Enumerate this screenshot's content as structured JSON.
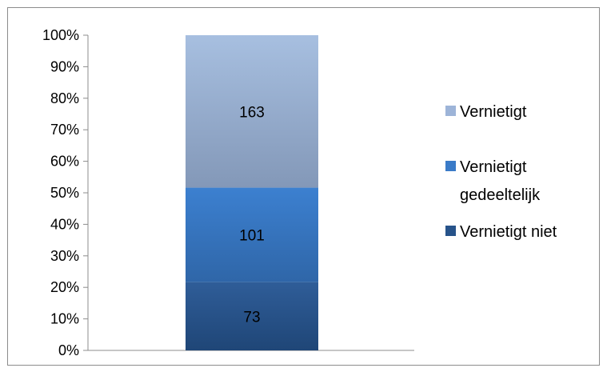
{
  "chart_data": {
    "type": "bar",
    "stacked": "percent",
    "categories": [
      ""
    ],
    "series": [
      {
        "name": "Vernietigt niet",
        "values": [
          73
        ],
        "color_top": "#2f5d98",
        "color_bottom": "#1f4677"
      },
      {
        "name": "Vernietigt gedeeltelijk",
        "values": [
          101
        ],
        "color_top": "#3c80d0",
        "color_bottom": "#2f66a8"
      },
      {
        "name": "Vernietigt",
        "values": [
          163
        ],
        "color_top": "#a7bfe0",
        "color_bottom": "#8398b8"
      }
    ],
    "data_labels": [
      "73",
      "101",
      "163"
    ],
    "y_ticks": [
      "0%",
      "10%",
      "20%",
      "30%",
      "40%",
      "50%",
      "60%",
      "70%",
      "80%",
      "90%",
      "100%"
    ],
    "ylim": [
      0,
      100
    ],
    "legend": {
      "placement": "right",
      "order": [
        {
          "label_lines": [
            "Vernietigt"
          ],
          "color": "#9db4d8"
        },
        {
          "label_lines": [
            "Vernietigt",
            "gedeeltelijk"
          ],
          "color": "#3a7bc8"
        },
        {
          "label_lines": [
            "Vernietigt niet"
          ],
          "color": "#27538a"
        }
      ]
    },
    "grid": false,
    "title": "",
    "xlabel": "",
    "ylabel": ""
  }
}
